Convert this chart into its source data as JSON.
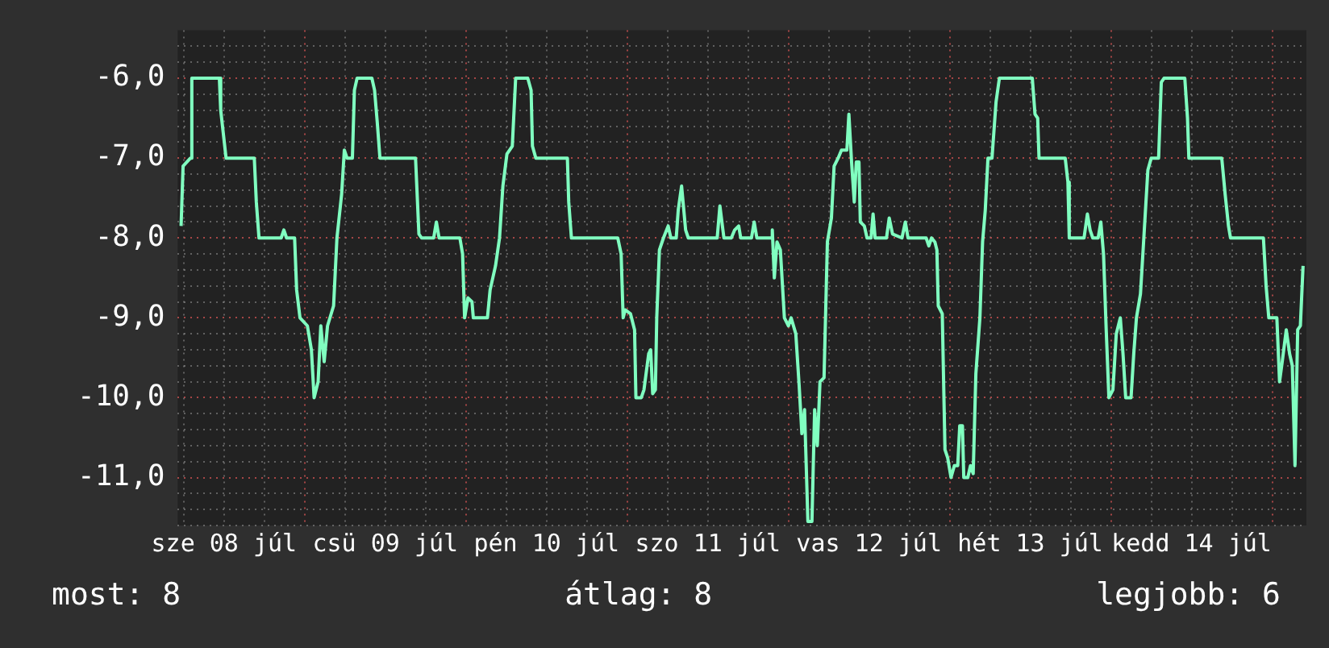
{
  "chart_data": {
    "type": "line",
    "x": [
      "--07-08T05:36",
      "--07-08T05:54",
      "--07-08T07:00",
      "--07-08T07:12",
      "--07-08T11:18",
      "--07-08T11:30",
      "--07-08T12:18",
      "--07-08T16:30",
      "--07-08T16:48",
      "--07-08T17:12",
      "--07-08T20:30",
      "--07-08T20:54",
      "--07-08T21:18",
      "--07-08T22:30",
      "--07-08T22:48",
      "--07-08T23:18",
      "--07-09T00:24",
      "--07-09T01:00",
      "--07-09T01:24",
      "--07-09T02:00",
      "--07-09T02:24",
      "--07-09T02:54",
      "--07-09T03:24",
      "--07-09T04:18",
      "--07-09T04:48",
      "--07-09T05:30",
      "--07-09T05:54",
      "--07-09T06:18",
      "--07-09T07:06",
      "--07-09T07:24",
      "--07-09T07:48",
      "--07-09T10:00",
      "--07-09T10:24",
      "--07-09T10:48",
      "--07-09T11:12",
      "--07-09T16:30",
      "--07-09T17:00",
      "--07-09T17:24",
      "--07-09T19:12",
      "--07-09T19:36",
      "--07-09T20:00",
      "--07-09T23:06",
      "--07-09T23:30",
      "--07-09T23:48",
      "--07-10T00:18",
      "--07-10T00:54",
      "--07-10T01:06",
      "--07-10T03:12",
      "--07-10T03:36",
      "--07-10T04:24",
      "--07-10T05:00",
      "--07-10T05:30",
      "--07-10T06:06",
      "--07-10T06:54",
      "--07-10T07:24",
      "--07-10T09:12",
      "--07-10T09:42",
      "--07-10T09:54",
      "--07-10T10:24",
      "--07-10T15:06",
      "--07-10T15:18",
      "--07-10T15:42",
      "--07-10T22:36",
      "--07-10T23:06",
      "--07-10T23:24",
      "--07-10T23:42",
      "--07-11T00:30",
      "--07-11T01:06",
      "--07-11T01:18",
      "--07-11T02:06",
      "--07-11T02:30",
      "--07-11T03:12",
      "--07-11T03:30",
      "--07-11T03:48",
      "--07-11T04:12",
      "--07-11T04:24",
      "--07-11T04:48",
      "--07-11T05:24",
      "--07-11T06:06",
      "--07-11T06:30",
      "--07-11T07:18",
      "--07-11T07:36",
      "--07-11T08:06",
      "--07-11T08:42",
      "--07-11T09:06",
      "--07-11T13:24",
      "--07-11T13:48",
      "--07-11T14:24",
      "--07-11T15:30",
      "--07-11T16:00",
      "--07-11T16:36",
      "--07-11T16:54",
      "--07-11T18:30",
      "--07-11T18:54",
      "--07-11T19:18",
      "--07-11T21:24",
      "--07-11T21:36",
      "--07-11T21:54",
      "--07-11T22:18",
      "--07-11T22:48",
      "--07-11T23:24",
      "--07-12T00:00",
      "--07-12T00:24",
      "--07-12T01:06",
      "--07-12T01:36",
      "--07-12T02:00",
      "--07-12T02:24",
      "--07-12T02:54",
      "--07-12T03:30",
      "--07-12T03:54",
      "--07-12T04:18",
      "--07-12T04:42",
      "--07-12T05:18",
      "--07-12T05:48",
      "--07-12T06:24",
      "--07-12T06:48",
      "--07-12T07:24",
      "--07-12T07:54",
      "--07-12T08:42",
      "--07-12T09:00",
      "--07-12T09:24",
      "--07-12T09:48",
      "--07-12T10:06",
      "--07-12T10:30",
      "--07-12T10:42",
      "--07-12T11:18",
      "--07-12T11:42",
      "--07-12T12:18",
      "--07-12T12:36",
      "--07-12T12:54",
      "--07-12T14:36",
      "--07-12T15:00",
      "--07-12T15:30",
      "--07-12T16:54",
      "--07-12T17:24",
      "--07-12T17:48",
      "--07-12T20:30",
      "--07-12T20:54",
      "--07-12T21:18",
      "--07-12T21:48",
      "--07-12T22:06",
      "--07-12T22:18",
      "--07-12T22:54",
      "--07-12T23:18",
      "--07-12T23:42",
      "--07-13T00:12",
      "--07-13T00:42",
      "--07-13T01:12",
      "--07-13T01:30",
      "--07-13T01:54",
      "--07-13T02:06",
      "--07-13T02:42",
      "--07-13T03:06",
      "--07-13T03:30",
      "--07-13T03:54",
      "--07-13T04:30",
      "--07-13T04:54",
      "--07-13T05:18",
      "--07-13T05:42",
      "--07-13T06:18",
      "--07-13T06:54",
      "--07-13T07:24",
      "--07-13T12:18",
      "--07-13T12:42",
      "--07-13T13:06",
      "--07-13T13:18",
      "--07-13T17:12",
      "--07-13T17:36",
      "--07-13T17:48",
      "--07-13T20:00",
      "--07-13T20:30",
      "--07-13T20:54",
      "--07-13T21:18",
      "--07-13T22:06",
      "--07-13T22:30",
      "--07-13T22:54",
      "--07-13T23:18",
      "--07-13T23:42",
      "--07-14T00:18",
      "--07-14T00:48",
      "--07-14T01:24",
      "--07-14T01:48",
      "--07-14T02:12",
      "--07-14T03:00",
      "--07-14T03:24",
      "--07-14T03:48",
      "--07-14T04:24",
      "--07-14T04:54",
      "--07-14T05:30",
      "--07-14T06:00",
      "--07-14T07:06",
      "--07-14T07:30",
      "--07-14T07:54",
      "--07-14T11:00",
      "--07-14T11:24",
      "--07-14T11:36",
      "--07-14T16:30",
      "--07-14T17:00",
      "--07-14T17:30",
      "--07-14T17:48",
      "--07-14T22:42",
      "--07-14T23:06",
      "--07-14T23:30",
      "--07-15T00:42",
      "--07-15T01:06",
      "--07-15T01:30",
      "--07-15T02:06",
      "--07-15T02:36",
      "--07-15T03:00",
      "--07-15T03:24",
      "--07-15T03:48",
      "--07-15T04:12",
      "--07-15T04:36"
    ],
    "series": [
      {
        "color": "#80ffc0",
        "values": [
          -7.85,
          -7.1,
          -7.0,
          -6.0,
          -6.0,
          -6.4,
          -7.0,
          -7.0,
          -7.55,
          -8.0,
          -8.0,
          -7.9,
          -8.0,
          -8.0,
          -8.65,
          -9.0,
          -9.1,
          -9.4,
          -10.0,
          -9.8,
          -9.1,
          -9.55,
          -9.1,
          -8.85,
          -8.0,
          -7.45,
          -6.9,
          -7.0,
          -7.0,
          -6.15,
          -6.0,
          -6.0,
          -6.15,
          -6.55,
          -7.0,
          -7.0,
          -7.95,
          -8.0,
          -8.0,
          -7.8,
          -8.0,
          -8.0,
          -8.2,
          -9.0,
          -8.75,
          -8.8,
          -9.0,
          -9.0,
          -8.65,
          -8.35,
          -8.0,
          -7.35,
          -6.95,
          -6.85,
          -6.0,
          -6.0,
          -6.15,
          -6.85,
          -7.0,
          -7.0,
          -7.55,
          -8.0,
          -8.0,
          -8.2,
          -9.0,
          -8.9,
          -8.95,
          -9.15,
          -10.0,
          -10.0,
          -9.9,
          -9.45,
          -9.4,
          -9.95,
          -9.9,
          -9.0,
          -8.15,
          -8.0,
          -7.85,
          -8.0,
          -8.0,
          -7.65,
          -7.35,
          -7.9,
          -8.0,
          -8.0,
          -7.6,
          -8.0,
          -8.0,
          -7.9,
          -7.85,
          -8.0,
          -8.0,
          -7.8,
          -8.0,
          -8.0,
          -7.9,
          -8.5,
          -8.05,
          -8.15,
          -9.0,
          -9.1,
          -9.0,
          -9.2,
          -9.85,
          -10.45,
          -10.15,
          -11.55,
          -11.55,
          -10.15,
          -10.6,
          -9.8,
          -9.75,
          -8.05,
          -7.75,
          -7.1,
          -7.0,
          -6.9,
          -6.9,
          -6.45,
          -7.05,
          -7.55,
          -7.05,
          -7.05,
          -7.8,
          -7.85,
          -8.0,
          -8.0,
          -7.7,
          -8.0,
          -8.0,
          -7.75,
          -7.95,
          -8.0,
          -7.8,
          -8.0,
          -8.0,
          -8.1,
          -8.0,
          -8.05,
          -8.15,
          -8.85,
          -8.95,
          -10.65,
          -10.75,
          -11.0,
          -10.85,
          -10.85,
          -10.35,
          -10.35,
          -11.0,
          -11.0,
          -10.85,
          -10.95,
          -9.7,
          -9.0,
          -8.05,
          -7.65,
          -7.0,
          -7.0,
          -6.3,
          -6.0,
          -6.0,
          -6.45,
          -6.5,
          -7.0,
          -7.0,
          -7.3,
          -8.0,
          -8.0,
          -7.7,
          -7.9,
          -8.0,
          -8.0,
          -7.8,
          -8.2,
          -9.15,
          -10.0,
          -9.9,
          -9.2,
          -9.0,
          -9.45,
          -10.0,
          -10.0,
          -9.45,
          -9.0,
          -8.7,
          -8.0,
          -7.15,
          -7.0,
          -7.0,
          -6.05,
          -6.0,
          -6.0,
          -6.5,
          -7.0,
          -7.0,
          -7.45,
          -7.85,
          -8.0,
          -8.0,
          -8.6,
          -9.0,
          -9.0,
          -9.8,
          -9.55,
          -9.15,
          -9.45,
          -9.6,
          -10.85,
          -9.15,
          -9.1,
          -8.35
        ]
      }
    ],
    "xlim": [
      "--07-08T05:06",
      "--07-15T05:06"
    ],
    "xticks": [
      {
        "value": "--07-08T06:00",
        "label": null
      },
      {
        "value": "--07-08T12:00",
        "label": "sze 08 júl"
      },
      {
        "value": "--07-08T18:00",
        "label": null
      },
      {
        "value": "--07-09T00:00",
        "label": null
      },
      {
        "value": "--07-09T06:00",
        "label": null
      },
      {
        "value": "--07-09T12:00",
        "label": "csü 09 júl"
      },
      {
        "value": "--07-09T18:00",
        "label": null
      },
      {
        "value": "--07-10T00:00",
        "label": null
      },
      {
        "value": "--07-10T06:00",
        "label": null
      },
      {
        "value": "--07-10T12:00",
        "label": "pén 10 júl"
      },
      {
        "value": "--07-10T18:00",
        "label": null
      },
      {
        "value": "--07-11T00:00",
        "label": null
      },
      {
        "value": "--07-11T06:00",
        "label": null
      },
      {
        "value": "--07-11T12:00",
        "label": "szo 11 júl"
      },
      {
        "value": "--07-11T18:00",
        "label": null
      },
      {
        "value": "--07-12T00:00",
        "label": null
      },
      {
        "value": "--07-12T06:00",
        "label": null
      },
      {
        "value": "--07-12T12:00",
        "label": "vas 12 júl"
      },
      {
        "value": "--07-12T18:00",
        "label": null
      },
      {
        "value": "--07-13T00:00",
        "label": null
      },
      {
        "value": "--07-13T06:00",
        "label": null
      },
      {
        "value": "--07-13T12:00",
        "label": "hét 13 júl"
      },
      {
        "value": "--07-13T18:00",
        "label": null
      },
      {
        "value": "--07-14T00:00",
        "label": null
      },
      {
        "value": "--07-14T06:00",
        "label": null
      },
      {
        "value": "--07-14T12:00",
        "label": "kedd 14 júl"
      },
      {
        "value": "--07-14T18:00",
        "label": null
      },
      {
        "value": "--07-15T00:00",
        "label": null
      }
    ],
    "ylim": [
      -11.6,
      -5.4
    ],
    "yticks": [
      {
        "value": -11.6,
        "label": null
      },
      {
        "value": -11.4,
        "label": null
      },
      {
        "value": -11.2,
        "label": null
      },
      {
        "value": -11,
        "label": "-11,0"
      },
      {
        "value": -10.8,
        "label": null
      },
      {
        "value": -10.6,
        "label": null
      },
      {
        "value": -10.4,
        "label": null
      },
      {
        "value": -10.2,
        "label": null
      },
      {
        "value": -10,
        "label": "-10,0"
      },
      {
        "value": -9.8,
        "label": null
      },
      {
        "value": -9.6,
        "label": null
      },
      {
        "value": -9.4,
        "label": null
      },
      {
        "value": -9.2,
        "label": null
      },
      {
        "value": -9,
        "label": "-9,0"
      },
      {
        "value": -8.8,
        "label": null
      },
      {
        "value": -8.6,
        "label": null
      },
      {
        "value": -8.4,
        "label": null
      },
      {
        "value": -8.2,
        "label": null
      },
      {
        "value": -8,
        "label": "-8,0"
      },
      {
        "value": -7.8,
        "label": null
      },
      {
        "value": -7.6,
        "label": null
      },
      {
        "value": -7.4,
        "label": null
      },
      {
        "value": -7.2,
        "label": null
      },
      {
        "value": -7,
        "label": "-7,0"
      },
      {
        "value": -6.8,
        "label": null
      },
      {
        "value": -6.6,
        "label": null
      },
      {
        "value": -6.4,
        "label": null
      },
      {
        "value": -6.2,
        "label": null
      },
      {
        "value": -6,
        "label": "-6,0"
      },
      {
        "value": -5.8,
        "label": null
      },
      {
        "value": -5.6,
        "label": null
      }
    ],
    "grid": true,
    "annotations": [
      "most: 8",
      "átlag: 8",
      "legjobb: 6"
    ]
  }
}
